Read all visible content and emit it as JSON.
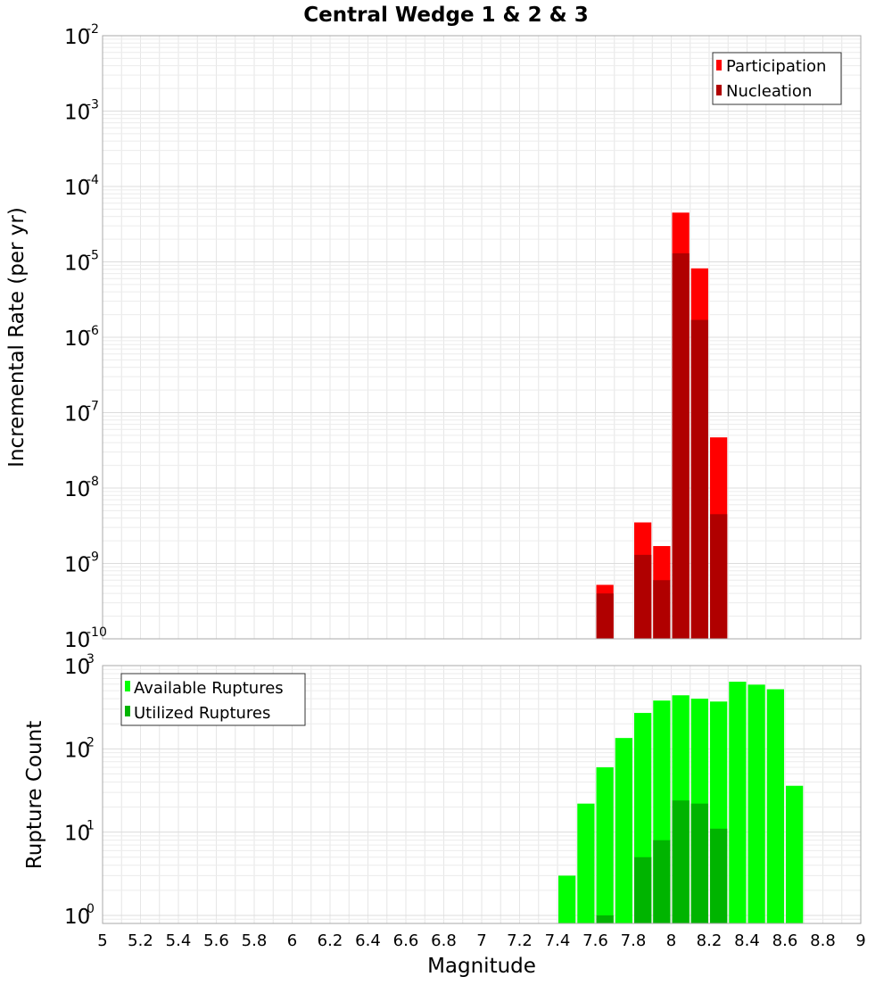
{
  "title": "Central Wedge 1 & 2 & 3",
  "colors": {
    "participation": "#ff0000",
    "nucleation": "#b00000",
    "available": "#00ff00",
    "utilized": "#00b400",
    "grid": "#e6e6e6",
    "frame": "#aaaaaa"
  },
  "chart_data": [
    {
      "type": "bar",
      "panel": "top",
      "title": "Central Wedge 1 & 2 & 3",
      "ylabel": "Incremental Rate (per yr)",
      "yscale": "log",
      "ylim": [
        1e-10,
        0.01
      ],
      "xlim": [
        5,
        9
      ],
      "grid": true,
      "legend_position": "top-right",
      "legend": [
        "Participation",
        "Nucleation"
      ],
      "y_ticks": [
        {
          "base": "10",
          "exp": "-10",
          "value": 1e-10
        },
        {
          "base": "10",
          "exp": "-9",
          "value": 1e-09
        },
        {
          "base": "10",
          "exp": "-8",
          "value": 1e-08
        },
        {
          "base": "10",
          "exp": "-7",
          "value": 1e-07
        },
        {
          "base": "10",
          "exp": "-6",
          "value": 1e-06
        },
        {
          "base": "10",
          "exp": "-5",
          "value": 1e-05
        },
        {
          "base": "10",
          "exp": "-4",
          "value": 0.0001
        },
        {
          "base": "10",
          "exp": "-3",
          "value": 0.001
        },
        {
          "base": "10",
          "exp": "-2",
          "value": 0.01
        }
      ],
      "series": [
        {
          "name": "Participation",
          "x": [
            7.65,
            7.85,
            7.95,
            8.05,
            8.15,
            8.25
          ],
          "values": [
            5.2e-10,
            3.5e-09,
            1.7e-09,
            4.5e-05,
            8.2e-06,
            4.7e-08
          ]
        },
        {
          "name": "Nucleation",
          "x": [
            7.65,
            7.85,
            7.95,
            8.05,
            8.15,
            8.25
          ],
          "values": [
            4e-10,
            1.3e-09,
            6e-10,
            1.3e-05,
            1.7e-06,
            4.5e-09
          ]
        }
      ]
    },
    {
      "type": "bar",
      "panel": "bottom",
      "xlabel": "Magnitude",
      "ylabel": "Rupture Count",
      "yscale": "log",
      "ylim": [
        0.8,
        1000
      ],
      "xlim": [
        5,
        9
      ],
      "grid": true,
      "legend_position": "top-left",
      "legend": [
        "Available Ruptures",
        "Utilized Ruptures"
      ],
      "y_ticks": [
        {
          "base": "10",
          "exp": "0",
          "value": 1
        },
        {
          "base": "10",
          "exp": "1",
          "value": 10
        },
        {
          "base": "10",
          "exp": "2",
          "value": 100
        },
        {
          "base": "10",
          "exp": "3",
          "value": 1000
        }
      ],
      "x_ticks": [
        "5",
        "5.2",
        "5.4",
        "5.6",
        "5.8",
        "6",
        "6.2",
        "6.4",
        "6.6",
        "6.8",
        "7",
        "7.2",
        "7.4",
        "7.6",
        "7.8",
        "8",
        "8.2",
        "8.4",
        "8.6",
        "8.8",
        "9"
      ],
      "series": [
        {
          "name": "Available Ruptures",
          "x": [
            7.45,
            7.55,
            7.65,
            7.75,
            7.85,
            7.95,
            8.05,
            8.15,
            8.25,
            8.35,
            8.45,
            8.55,
            8.65
          ],
          "values": [
            3,
            22,
            60,
            135,
            270,
            380,
            440,
            400,
            370,
            640,
            590,
            520,
            36
          ]
        },
        {
          "name": "Utilized Ruptures",
          "x": [
            7.65,
            7.85,
            7.95,
            8.05,
            8.15,
            8.25
          ],
          "values": [
            1,
            5,
            8,
            24,
            22,
            11
          ]
        }
      ]
    }
  ]
}
